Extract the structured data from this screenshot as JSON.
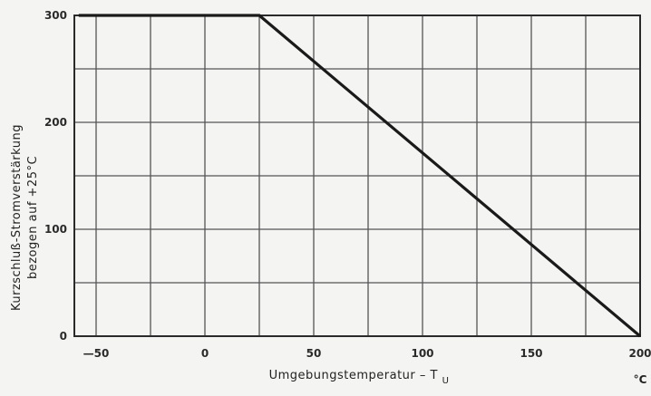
{
  "chart_data": {
    "type": "line",
    "xlabel": "Umgebungstemperatur – T",
    "xlabel_subscript": "U",
    "x_unit": "°C",
    "ylabel_line1": "Kurzschluß-Stromverstärkung",
    "ylabel_line2": "bezogen auf   +25°C",
    "xlim": [
      -60,
      200
    ],
    "ylim": [
      0,
      300
    ],
    "x_ticks": [
      -50,
      0,
      50,
      100,
      150,
      200
    ],
    "y_ticks": [
      0,
      100,
      200,
      300
    ],
    "x_tick_labels": [
      "—50",
      "0",
      "50",
      "100",
      "150",
      "200"
    ],
    "y_tick_labels": [
      "0",
      "100",
      "200",
      "300"
    ],
    "grid": true,
    "series": [
      {
        "x": [
          -58,
          25,
          200
        ],
        "y": [
          300,
          300,
          0
        ]
      }
    ]
  }
}
